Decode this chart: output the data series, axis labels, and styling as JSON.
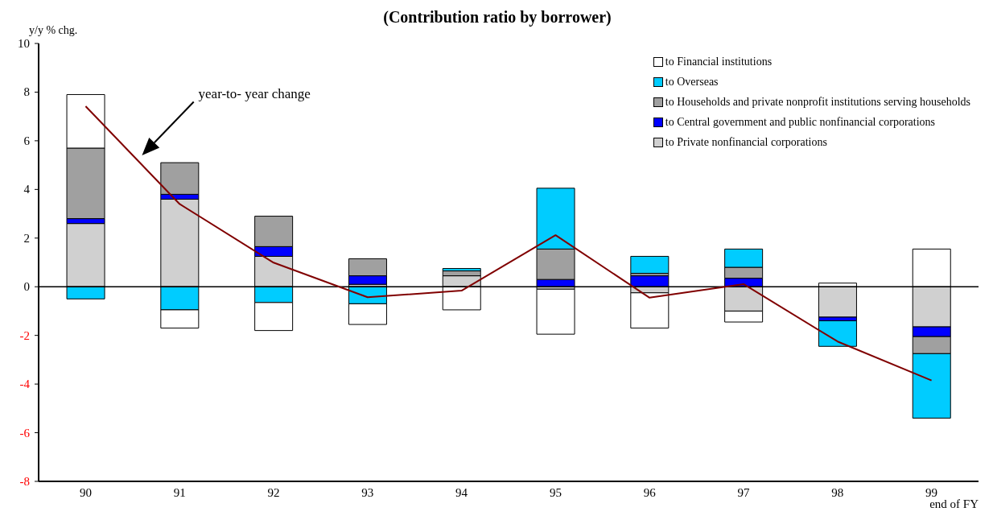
{
  "chart_data": {
    "type": "bar",
    "title": "(Contribution ratio by borrower)",
    "ylabel": "y/y % chg.",
    "xlabel": "end of FY",
    "stacked": true,
    "categories": [
      "90",
      "91",
      "92",
      "93",
      "94",
      "95",
      "96",
      "97",
      "98",
      "99"
    ],
    "series": [
      {
        "name": "to Private nonfinancial corporations",
        "color": "#d0d0d0",
        "values": [
          2.6,
          3.6,
          1.25,
          0.1,
          0.45,
          -0.1,
          -0.25,
          -1.0,
          -1.25,
          -1.65
        ]
      },
      {
        "name": "to Central government and public nonfinancial corporations",
        "color": "#0000ff",
        "values": [
          0.2,
          0.2,
          0.4,
          0.35,
          0,
          0.3,
          0.45,
          0.35,
          -0.15,
          -0.4
        ]
      },
      {
        "name": "to Households and private nonprofit institutions serving households",
        "color": "#a0a0a0",
        "values": [
          2.9,
          1.3,
          1.25,
          0.7,
          0.2,
          1.25,
          0.1,
          0.45,
          0,
          -0.7
        ]
      },
      {
        "name": "to Overseas",
        "color": "#00ccff",
        "values": [
          -0.5,
          -0.95,
          -0.65,
          -0.7,
          0.1,
          2.5,
          0.7,
          0.75,
          -1.05,
          -2.65
        ]
      },
      {
        "name": "to Financial institutions",
        "color": "#ffffff",
        "values": [
          2.2,
          -0.75,
          -1.15,
          -0.85,
          -0.95,
          -1.85,
          -1.45,
          -0.45,
          0.15,
          1.55
        ]
      },
      {
        "type": "line",
        "color": "#800000",
        "values": [
          7.42,
          3.4,
          0.99,
          -0.43,
          -0.16,
          2.12,
          -0.45,
          0.11,
          -2.25,
          -3.85
        ]
      }
    ],
    "annotations": [
      "year-to- year change"
    ],
    "ref_lines": [
      {
        "axis": "y",
        "value": 0,
        "color": "#000000"
      }
    ],
    "ylim": [
      -8,
      10
    ],
    "yticks": [
      -8,
      -6,
      -4,
      -2,
      0,
      2,
      4,
      6,
      8,
      10
    ],
    "legend": "top right",
    "marker": "none",
    "line_style": "solid"
  }
}
